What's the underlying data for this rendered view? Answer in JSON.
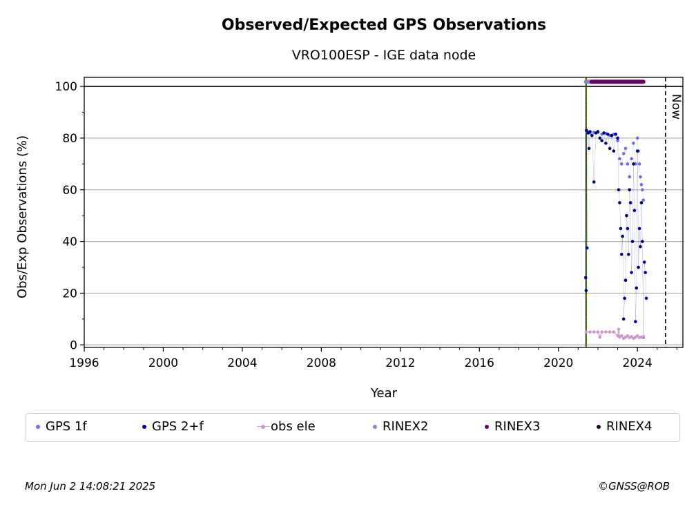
{
  "colors": {
    "gps1f": "#6b6bf0",
    "gps2f": "#00008b",
    "obs_ele": "#cc99cc",
    "rinex2": "#8a7fc8",
    "rinex3": "#6b0066",
    "rinex4": "#220022",
    "start_line_green": "#008000",
    "start_line_red": "#cc0000",
    "grid": "#b0b0b0"
  },
  "footer": {
    "timestamp": "Mon Jun  2 14:08:21 2025",
    "credit": "©GNSS@ROB"
  },
  "chart_data": {
    "type": "scatter",
    "title": "Observed/Expected GPS Observations",
    "subtitle": "VRO100ESP - IGE data node",
    "xlabel": "Year",
    "ylabel": "Obs/Exp Observations (%)",
    "xlim": [
      1996,
      2026.3
    ],
    "ylim": [
      -1,
      103.5
    ],
    "xticks": [
      1996,
      2000,
      2004,
      2008,
      2012,
      2016,
      2020,
      2024
    ],
    "xtick_labels": [
      "1996",
      "2000",
      "2004",
      "2008",
      "2012",
      "2016",
      "2020",
      "2024"
    ],
    "yticks": [
      0,
      20,
      40,
      60,
      80,
      100
    ],
    "ytick_labels": [
      "0",
      "20",
      "40",
      "60",
      "80",
      "100"
    ],
    "grid": "horizontal",
    "legend_placement": "below",
    "reference_lines": {
      "y_solid": 100,
      "station_start_x": 2021.4,
      "now_x": 2025.42,
      "now_label": "Now"
    },
    "series": [
      {
        "name": "GPS 1f",
        "style": "dots",
        "points": [
          [
            2021.45,
            82.5
          ],
          [
            2021.6,
            82
          ],
          [
            2021.8,
            82.2
          ],
          [
            2022.0,
            82.3
          ],
          [
            2022.2,
            81.5
          ],
          [
            2022.4,
            81.8
          ],
          [
            2022.6,
            81
          ],
          [
            2022.8,
            81.5
          ],
          [
            2023.0,
            79
          ],
          [
            2023.1,
            72
          ],
          [
            2023.2,
            70
          ],
          [
            2023.3,
            74
          ],
          [
            2023.4,
            76
          ],
          [
            2023.5,
            70
          ],
          [
            2023.6,
            65
          ],
          [
            2023.7,
            72
          ],
          [
            2023.8,
            78
          ],
          [
            2023.9,
            70
          ],
          [
            2024.0,
            80
          ],
          [
            2024.05,
            75
          ],
          [
            2024.1,
            70
          ],
          [
            2024.15,
            65
          ],
          [
            2024.2,
            62
          ],
          [
            2024.25,
            60
          ],
          [
            2024.3,
            56
          ]
        ]
      },
      {
        "name": "GPS 2+f",
        "style": "dots",
        "points": [
          [
            2021.38,
            26
          ],
          [
            2021.4,
            21
          ],
          [
            2021.42,
            83
          ],
          [
            2021.45,
            37.5
          ],
          [
            2021.5,
            82
          ],
          [
            2021.55,
            76
          ],
          [
            2021.6,
            82.5
          ],
          [
            2021.7,
            81
          ],
          [
            2021.8,
            63
          ],
          [
            2021.9,
            82
          ],
          [
            2022.0,
            82.5
          ],
          [
            2022.1,
            80
          ],
          [
            2022.2,
            79
          ],
          [
            2022.3,
            82
          ],
          [
            2022.4,
            78
          ],
          [
            2022.5,
            81.5
          ],
          [
            2022.6,
            76
          ],
          [
            2022.7,
            81
          ],
          [
            2022.8,
            75
          ],
          [
            2022.9,
            81.5
          ],
          [
            2023.0,
            80
          ],
          [
            2023.05,
            60
          ],
          [
            2023.1,
            55
          ],
          [
            2023.15,
            45
          ],
          [
            2023.2,
            35
          ],
          [
            2023.25,
            42
          ],
          [
            2023.3,
            10
          ],
          [
            2023.35,
            18
          ],
          [
            2023.4,
            25
          ],
          [
            2023.45,
            50
          ],
          [
            2023.5,
            45
          ],
          [
            2023.55,
            35
          ],
          [
            2023.6,
            60
          ],
          [
            2023.65,
            55
          ],
          [
            2023.7,
            28
          ],
          [
            2023.75,
            40
          ],
          [
            2023.8,
            70
          ],
          [
            2023.85,
            52
          ],
          [
            2023.9,
            9
          ],
          [
            2023.95,
            22
          ],
          [
            2024.0,
            75
          ],
          [
            2024.05,
            30
          ],
          [
            2024.1,
            45
          ],
          [
            2024.15,
            38
          ],
          [
            2024.2,
            55
          ],
          [
            2024.25,
            40
          ],
          [
            2024.3,
            3
          ],
          [
            2024.35,
            32
          ],
          [
            2024.4,
            28
          ],
          [
            2024.45,
            18
          ]
        ]
      },
      {
        "name": "obs ele",
        "style": "line-dots",
        "points": [
          [
            2021.4,
            5
          ],
          [
            2021.6,
            5
          ],
          [
            2021.8,
            5
          ],
          [
            2022.0,
            5
          ],
          [
            2022.1,
            3
          ],
          [
            2022.2,
            5
          ],
          [
            2022.4,
            5
          ],
          [
            2022.6,
            5
          ],
          [
            2022.8,
            5
          ],
          [
            2023.0,
            3.5
          ],
          [
            2023.05,
            6
          ],
          [
            2023.1,
            3
          ],
          [
            2023.2,
            3.5
          ],
          [
            2023.3,
            2.5
          ],
          [
            2023.4,
            3
          ],
          [
            2023.5,
            3.5
          ],
          [
            2023.6,
            2.8
          ],
          [
            2023.7,
            3.2
          ],
          [
            2023.8,
            2.5
          ],
          [
            2023.9,
            3
          ],
          [
            2024.0,
            3.5
          ],
          [
            2024.1,
            2.8
          ],
          [
            2024.2,
            3
          ],
          [
            2024.3,
            3.2
          ]
        ]
      },
      {
        "name": "RINEX2",
        "style": "band",
        "x_range": [
          2021.4,
          2021.68
        ],
        "y": 101.8
      },
      {
        "name": "RINEX3",
        "style": "band",
        "x_range": [
          2021.68,
          2024.3
        ],
        "y": 101.8
      },
      {
        "name": "RINEX4",
        "style": "band",
        "x_range": [],
        "y": 101.8
      }
    ]
  }
}
